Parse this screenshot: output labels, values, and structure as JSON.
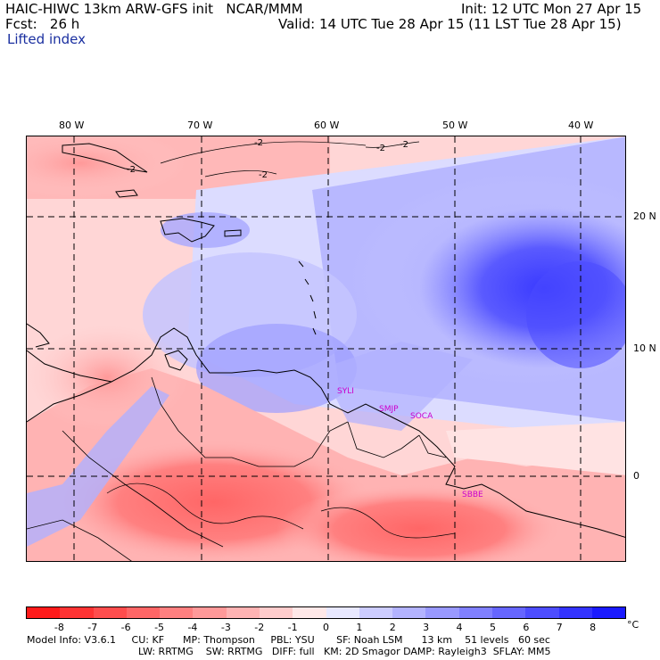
{
  "header": {
    "model_line": "HAIC-HIWC 13km ARW-GFS init   NCAR/MMM",
    "init": "Init: 12 UTC Mon 27 Apr 15",
    "fcst": "Fcst:   26 h",
    "valid": "Valid: 14 UTC Tue 28 Apr 15 (11 LST Tue 28 Apr 15)",
    "field": "Lifted index"
  },
  "axes": {
    "lon_labels": [
      "80 W",
      "70 W",
      "60 W",
      "50 W",
      "40 W"
    ],
    "lat_labels": [
      "20 N",
      "10 N",
      "0"
    ]
  },
  "map": {
    "station_labels": [
      "SYLI",
      "SMJP",
      "SOCA",
      "SBBE"
    ],
    "contour_labels": [
      "-2",
      "-2",
      "-2",
      "-2",
      "-2"
    ],
    "station_color": "#cc00cc"
  },
  "colorbar": {
    "ticks": [
      "-8",
      "-7",
      "-6",
      "-5",
      "-4",
      "-3",
      "-2",
      "-1",
      "0",
      "1",
      "2",
      "3",
      "4",
      "5",
      "6",
      "7",
      "8"
    ],
    "unit": "°C",
    "colors": [
      "#ff1a1a",
      "#ff3333",
      "#ff4d4d",
      "#ff6666",
      "#ff8080",
      "#ff9999",
      "#ffb3b3",
      "#ffcccc",
      "#ffe8e8",
      "#e8e8ff",
      "#ccccff",
      "#b3b3ff",
      "#9999ff",
      "#8080ff",
      "#6666ff",
      "#4d4dff",
      "#3333ff",
      "#1a1aff"
    ]
  },
  "footer": {
    "line1": "Model Info: V3.6.1     CU: KF      MP: Thompson     PBL: YSU       SF: Noah LSM      13 km    51 levels   60 sec",
    "line2": "LW: RRTMG    SW: RRTMG   DIFF: full   KM: 2D Smagor DAMP: Rayleigh3  SFLAY: MM5"
  }
}
